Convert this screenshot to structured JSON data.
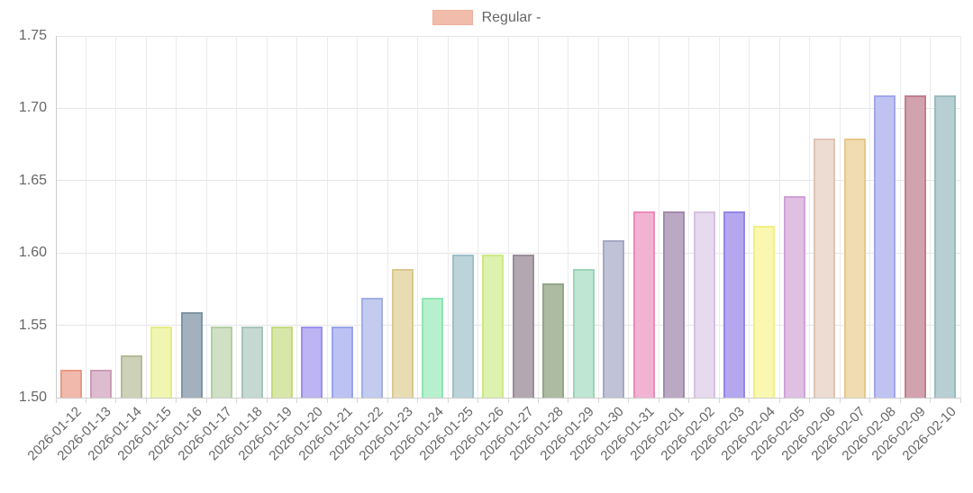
{
  "legend": {
    "label": "Regular -",
    "swatch_fill": "#f2bcab",
    "swatch_border": "#e79a87"
  },
  "axis_style": {
    "text_color": "#666666",
    "grid_color": "#e6e6e6",
    "axis_line_color": "#cccccc"
  },
  "chart_data": {
    "type": "bar",
    "title": "",
    "xlabel": "",
    "ylabel": "",
    "legend_position": "top",
    "grid": true,
    "series_name": "Regular -",
    "ylim": [
      1.5,
      1.75
    ],
    "ytick_labels": [
      "1.50",
      "1.55",
      "1.60",
      "1.65",
      "1.70",
      "1.75"
    ],
    "yticks": [
      1.5,
      1.55,
      1.6,
      1.65,
      1.7,
      1.75
    ],
    "categories": [
      "2026-01-12",
      "2026-01-13",
      "2026-01-14",
      "2026-01-15",
      "2026-01-16",
      "2026-01-17",
      "2026-01-18",
      "2026-01-19",
      "2026-01-20",
      "2026-01-21",
      "2026-01-22",
      "2026-01-23",
      "2026-01-24",
      "2026-01-25",
      "2026-01-26",
      "2026-01-27",
      "2026-01-28",
      "2026-01-29",
      "2026-01-30",
      "2026-01-31",
      "2026-02-01",
      "2026-02-02",
      "2026-02-03",
      "2026-02-04",
      "2026-02-05",
      "2026-02-06",
      "2026-02-07",
      "2026-02-08",
      "2026-02-09",
      "2026-02-10"
    ],
    "values": [
      1.519,
      1.519,
      1.529,
      1.549,
      1.559,
      1.549,
      1.549,
      1.549,
      1.549,
      1.549,
      1.569,
      1.589,
      1.569,
      1.599,
      1.599,
      1.599,
      1.579,
      1.589,
      1.609,
      1.629,
      1.629,
      1.629,
      1.629,
      1.619,
      1.639,
      1.679,
      1.679,
      1.709,
      1.709,
      1.709
    ],
    "bar_colors": [
      {
        "fill": "#f1b9ab",
        "border": "#e79a87"
      },
      {
        "fill": "#dcbcce",
        "border": "#cb9cb5"
      },
      {
        "fill": "#cdd1b8",
        "border": "#b5bb97"
      },
      {
        "fill": "#f0f6b2",
        "border": "#e5ee86"
      },
      {
        "fill": "#a3b0bd",
        "border": "#8095a6"
      },
      {
        "fill": "#cfe0c4",
        "border": "#b2cfa2"
      },
      {
        "fill": "#c5d9d2",
        "border": "#a6c4ba"
      },
      {
        "fill": "#d8e6a8",
        "border": "#c4da7f"
      },
      {
        "fill": "#bcb4f3",
        "border": "#9c90ec"
      },
      {
        "fill": "#bcc2f3",
        "border": "#9aa3ec"
      },
      {
        "fill": "#c3cbee",
        "border": "#a3b0e4"
      },
      {
        "fill": "#e8dcb3",
        "border": "#dac88e"
      },
      {
        "fill": "#b7f0cd",
        "border": "#90e5b2"
      },
      {
        "fill": "#bdd3da",
        "border": "#9dc0ca"
      },
      {
        "fill": "#ddf2ae",
        "border": "#cbea84"
      },
      {
        "fill": "#b3a8b2",
        "border": "#998c98"
      },
      {
        "fill": "#adbba3",
        "border": "#93a687"
      },
      {
        "fill": "#bfe5d3",
        "border": "#9bd5b9"
      },
      {
        "fill": "#c0c2d6",
        "border": "#a5a8c4"
      },
      {
        "fill": "#f2b3d3",
        "border": "#eb8aba"
      },
      {
        "fill": "#bba9c4",
        "border": "#a389ae"
      },
      {
        "fill": "#e7d9ee",
        "border": "#d6c1e2"
      },
      {
        "fill": "#b4a7ef",
        "border": "#9486e6"
      },
      {
        "fill": "#f9f7b0",
        "border": "#f3ef83"
      },
      {
        "fill": "#dfc0e3",
        "border": "#d0a1d7"
      },
      {
        "fill": "#ecdcd2",
        "border": "#dfc3b4"
      },
      {
        "fill": "#f0dcb0",
        "border": "#e6c888"
      },
      {
        "fill": "#c0c3f2",
        "border": "#a1a6ea"
      },
      {
        "fill": "#d2a2af",
        "border": "#c17e90"
      },
      {
        "fill": "#b7ced2",
        "border": "#9abbc0"
      }
    ]
  }
}
